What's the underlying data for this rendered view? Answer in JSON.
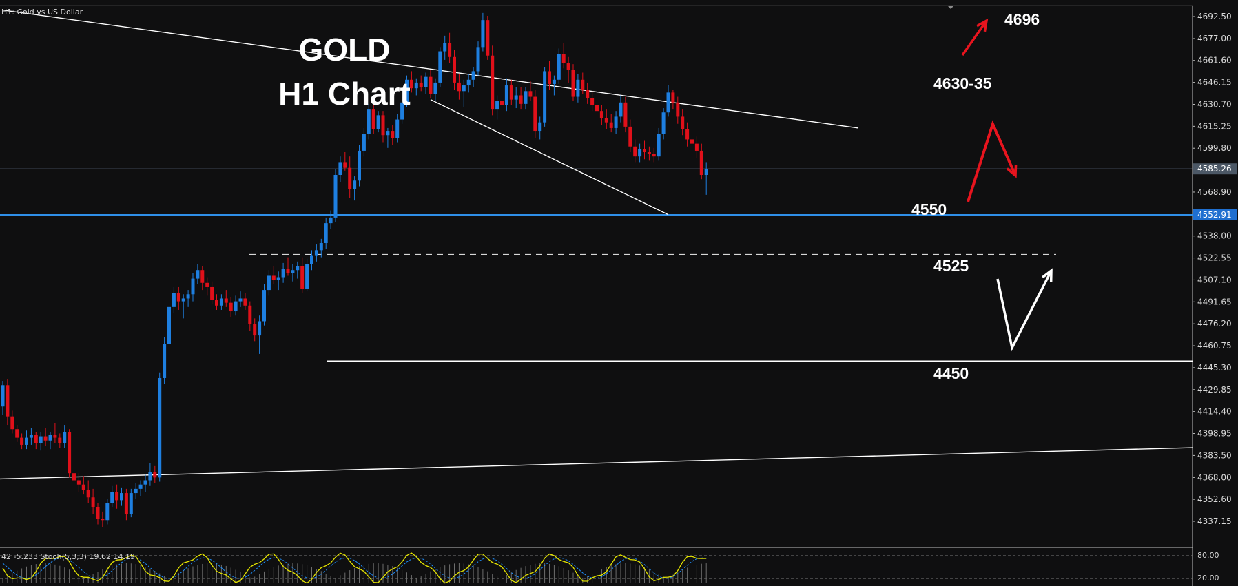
{
  "header": {
    "symbol_label": "H1:  Gold vs US Dollar"
  },
  "title": {
    "line1": "GOLD",
    "line2": "H1 Chart"
  },
  "annotations": {
    "target_high": "4696",
    "resistance": "4630-35",
    "support_1": "4550",
    "support_2": "4525",
    "support_3": "4450"
  },
  "indicator": {
    "label": "42 -5.233  Stoch(5,3,3) 19.62 14.19"
  },
  "colors": {
    "background": "#0f0f10",
    "bull": "#1e7fe0",
    "bear": "#e0101a",
    "current_price_line": "#6b7f95",
    "support_line": "#2f8fe8",
    "trendline": "#ffffff",
    "arrow_red": "#e8141e",
    "arrow_white": "#ffffff",
    "stoch_main": "#e6e600",
    "stoch_signal": "#1e90ff"
  },
  "chart_data": {
    "type": "candlestick",
    "instrument": "Gold vs US Dollar",
    "timeframe": "H1",
    "y_axis": {
      "ticks": [
        4692.5,
        4677.0,
        4661.6,
        4646.15,
        4630.7,
        4615.25,
        4599.8,
        4584.35,
        4568.9,
        4553.45,
        4538.0,
        4522.55,
        4507.1,
        4491.65,
        4476.2,
        4460.75,
        4445.3,
        4429.85,
        4414.4,
        4398.95,
        4383.5,
        4368.0,
        4352.6,
        4337.15
      ],
      "tick_labels": [
        "4692.50",
        "4677.00",
        "4661.60",
        "4646.15",
        "4630.70",
        "4615.25",
        "4599.80",
        "4584.35",
        "4568.90",
        "4553.45",
        "4538.00",
        "4522.55",
        "4507.10",
        "4491.65",
        "4476.20",
        "4460.75",
        "4445.30",
        "4429.85",
        "4414.40",
        "4398.95",
        "4383.50",
        "4368.00",
        "4352.60",
        "4337.15"
      ],
      "current_price": 4585.26,
      "current_price_label": "4585.26",
      "support_price": 4552.91,
      "support_price_label": "4552.91",
      "dashed_level": 4525,
      "level_4450": 4450
    },
    "trendlines": {
      "channel_upper": [
        [
          0,
          4697
        ],
        [
          180,
          4614
        ]
      ],
      "channel_lower": [
        [
          90,
          4634
        ],
        [
          140,
          4553
        ]
      ],
      "long_support": [
        [
          0,
          4367
        ],
        [
          277,
          4389
        ]
      ]
    },
    "candles": [
      [
        4418,
        4436,
        4412,
        4433
      ],
      [
        4433,
        4437,
        4405,
        4411
      ],
      [
        4411,
        4415,
        4399,
        4402
      ],
      [
        4402,
        4405,
        4393,
        4396
      ],
      [
        4396,
        4399,
        4388,
        4391
      ],
      [
        4391,
        4401,
        4388,
        4396
      ],
      [
        4396,
        4403,
        4391,
        4398
      ],
      [
        4398,
        4400,
        4388,
        4392
      ],
      [
        4392,
        4400,
        4387,
        4397
      ],
      [
        4397,
        4403,
        4390,
        4394
      ],
      [
        4394,
        4400,
        4388,
        4398
      ],
      [
        4398,
        4406,
        4392,
        4396
      ],
      [
        4396,
        4399,
        4389,
        4392
      ],
      [
        4392,
        4405,
        4389,
        4400
      ],
      [
        4400,
        4402,
        4368,
        4371
      ],
      [
        4371,
        4375,
        4360,
        4366
      ],
      [
        4366,
        4371,
        4358,
        4363
      ],
      [
        4363,
        4369,
        4356,
        4359
      ],
      [
        4359,
        4366,
        4350,
        4354
      ],
      [
        4354,
        4360,
        4342,
        4347
      ],
      [
        4347,
        4350,
        4335,
        4339
      ],
      [
        4339,
        4344,
        4333,
        4338
      ],
      [
        4338,
        4353,
        4335,
        4350
      ],
      [
        4350,
        4362,
        4347,
        4358
      ],
      [
        4358,
        4363,
        4346,
        4352
      ],
      [
        4352,
        4361,
        4348,
        4357
      ],
      [
        4357,
        4360,
        4338,
        4342
      ],
      [
        4342,
        4360,
        4340,
        4357
      ],
      [
        4357,
        4364,
        4353,
        4360
      ],
      [
        4360,
        4366,
        4355,
        4363
      ],
      [
        4363,
        4370,
        4358,
        4366
      ],
      [
        4366,
        4378,
        4362,
        4372
      ],
      [
        4372,
        4376,
        4364,
        4368
      ],
      [
        4368,
        4442,
        4365,
        4438
      ],
      [
        4438,
        4467,
        4434,
        4462
      ],
      [
        4462,
        4492,
        4458,
        4488
      ],
      [
        4488,
        4502,
        4484,
        4498
      ],
      [
        4498,
        4502,
        4486,
        4492
      ],
      [
        4492,
        4497,
        4480,
        4494
      ],
      [
        4494,
        4500,
        4488,
        4497
      ],
      [
        4497,
        4512,
        4492,
        4508
      ],
      [
        4508,
        4518,
        4504,
        4514
      ],
      [
        4514,
        4517,
        4500,
        4505
      ],
      [
        4505,
        4509,
        4496,
        4502
      ],
      [
        4502,
        4506,
        4490,
        4493
      ],
      [
        4493,
        4497,
        4486,
        4489
      ],
      [
        4489,
        4497,
        4486,
        4494
      ],
      [
        4494,
        4500,
        4488,
        4491
      ],
      [
        4491,
        4495,
        4481,
        4485
      ],
      [
        4485,
        4496,
        4482,
        4492
      ],
      [
        4492,
        4499,
        4488,
        4494
      ],
      [
        4494,
        4498,
        4486,
        4489
      ],
      [
        4489,
        4492,
        4471,
        4476
      ],
      [
        4476,
        4480,
        4464,
        4468
      ],
      [
        4468,
        4482,
        4455,
        4478
      ],
      [
        4478,
        4504,
        4475,
        4500
      ],
      [
        4500,
        4514,
        4496,
        4510
      ],
      [
        4510,
        4517,
        4504,
        4507
      ],
      [
        4507,
        4513,
        4500,
        4509
      ],
      [
        4509,
        4519,
        4505,
        4515
      ],
      [
        4515,
        4523,
        4510,
        4512
      ],
      [
        4512,
        4518,
        4506,
        4514
      ],
      [
        4514,
        4520,
        4508,
        4517
      ],
      [
        4517,
        4523,
        4498,
        4501
      ],
      [
        4501,
        4522,
        4499,
        4518
      ],
      [
        4518,
        4528,
        4514,
        4524
      ],
      [
        4524,
        4532,
        4520,
        4528
      ],
      [
        4528,
        4536,
        4523,
        4533
      ],
      [
        4533,
        4551,
        4529,
        4547
      ],
      [
        4547,
        4556,
        4543,
        4551
      ],
      [
        4551,
        4585,
        4548,
        4581
      ],
      [
        4581,
        4594,
        4576,
        4590
      ],
      [
        4590,
        4597,
        4584,
        4586
      ],
      [
        4586,
        4594,
        4565,
        4571
      ],
      [
        4571,
        4580,
        4563,
        4577
      ],
      [
        4577,
        4602,
        4573,
        4598
      ],
      [
        4598,
        4614,
        4594,
        4610
      ],
      [
        4610,
        4631,
        4606,
        4627
      ],
      [
        4627,
        4630,
        4610,
        4613
      ],
      [
        4613,
        4626,
        4611,
        4623
      ],
      [
        4623,
        4626,
        4604,
        4609
      ],
      [
        4609,
        4614,
        4600,
        4612
      ],
      [
        4612,
        4616,
        4602,
        4607
      ],
      [
        4607,
        4624,
        4604,
        4620
      ],
      [
        4620,
        4636,
        4617,
        4632
      ],
      [
        4632,
        4651,
        4629,
        4648
      ],
      [
        4648,
        4654,
        4639,
        4642
      ],
      [
        4642,
        4649,
        4637,
        4646
      ],
      [
        4646,
        4651,
        4640,
        4643
      ],
      [
        4643,
        4653,
        4638,
        4650
      ],
      [
        4650,
        4655,
        4635,
        4638
      ],
      [
        4638,
        4649,
        4633,
        4646
      ],
      [
        4646,
        4671,
        4643,
        4668
      ],
      [
        4668,
        4679,
        4662,
        4674
      ],
      [
        4674,
        4681,
        4660,
        4664
      ],
      [
        4664,
        4669,
        4641,
        4646
      ],
      [
        4646,
        4652,
        4634,
        4640
      ],
      [
        4640,
        4648,
        4629,
        4644
      ],
      [
        4644,
        4652,
        4639,
        4648
      ],
      [
        4648,
        4657,
        4643,
        4654
      ],
      [
        4654,
        4675,
        4651,
        4671
      ],
      [
        4671,
        4695,
        4668,
        4690
      ],
      [
        4690,
        4693,
        4662,
        4665
      ],
      [
        4665,
        4672,
        4623,
        4627
      ],
      [
        4627,
        4637,
        4620,
        4633
      ],
      [
        4633,
        4641,
        4624,
        4630
      ],
      [
        4630,
        4649,
        4626,
        4644
      ],
      [
        4644,
        4648,
        4630,
        4634
      ],
      [
        4634,
        4643,
        4628,
        4637
      ],
      [
        4637,
        4643,
        4627,
        4631
      ],
      [
        4631,
        4643,
        4627,
        4640
      ],
      [
        4640,
        4647,
        4633,
        4636
      ],
      [
        4636,
        4641,
        4607,
        4612
      ],
      [
        4612,
        4622,
        4606,
        4618
      ],
      [
        4618,
        4657,
        4615,
        4654
      ],
      [
        4654,
        4661,
        4641,
        4645
      ],
      [
        4645,
        4651,
        4637,
        4648
      ],
      [
        4648,
        4670,
        4645,
        4666
      ],
      [
        4666,
        4674,
        4656,
        4660
      ],
      [
        4660,
        4664,
        4646,
        4655
      ],
      [
        4655,
        4659,
        4633,
        4636
      ],
      [
        4636,
        4652,
        4632,
        4648
      ],
      [
        4648,
        4653,
        4638,
        4641
      ],
      [
        4641,
        4646,
        4631,
        4635
      ],
      [
        4635,
        4640,
        4626,
        4630
      ],
      [
        4630,
        4635,
        4621,
        4626
      ],
      [
        4626,
        4630,
        4616,
        4621
      ],
      [
        4621,
        4627,
        4613,
        4618
      ],
      [
        4618,
        4624,
        4611,
        4614
      ],
      [
        4614,
        4626,
        4610,
        4622
      ],
      [
        4622,
        4637,
        4618,
        4632
      ],
      [
        4632,
        4636,
        4611,
        4615
      ],
      [
        4615,
        4620,
        4597,
        4601
      ],
      [
        4601,
        4606,
        4590,
        4594
      ],
      [
        4594,
        4603,
        4590,
        4599
      ],
      [
        4599,
        4605,
        4592,
        4597
      ],
      [
        4597,
        4601,
        4591,
        4596
      ],
      [
        4596,
        4600,
        4590,
        4594
      ],
      [
        4594,
        4614,
        4591,
        4610
      ],
      [
        4610,
        4628,
        4606,
        4625
      ],
      [
        4625,
        4644,
        4622,
        4639
      ],
      [
        4639,
        4641,
        4627,
        4632
      ],
      [
        4632,
        4636,
        4617,
        4622
      ],
      [
        4622,
        4627,
        4609,
        4613
      ],
      [
        4613,
        4618,
        4601,
        4606
      ],
      [
        4606,
        4611,
        4597,
        4603
      ],
      [
        4603,
        4608,
        4593,
        4598
      ],
      [
        4598,
        4603,
        4578,
        4581
      ],
      [
        4581,
        4590,
        4567,
        4585
      ]
    ]
  }
}
